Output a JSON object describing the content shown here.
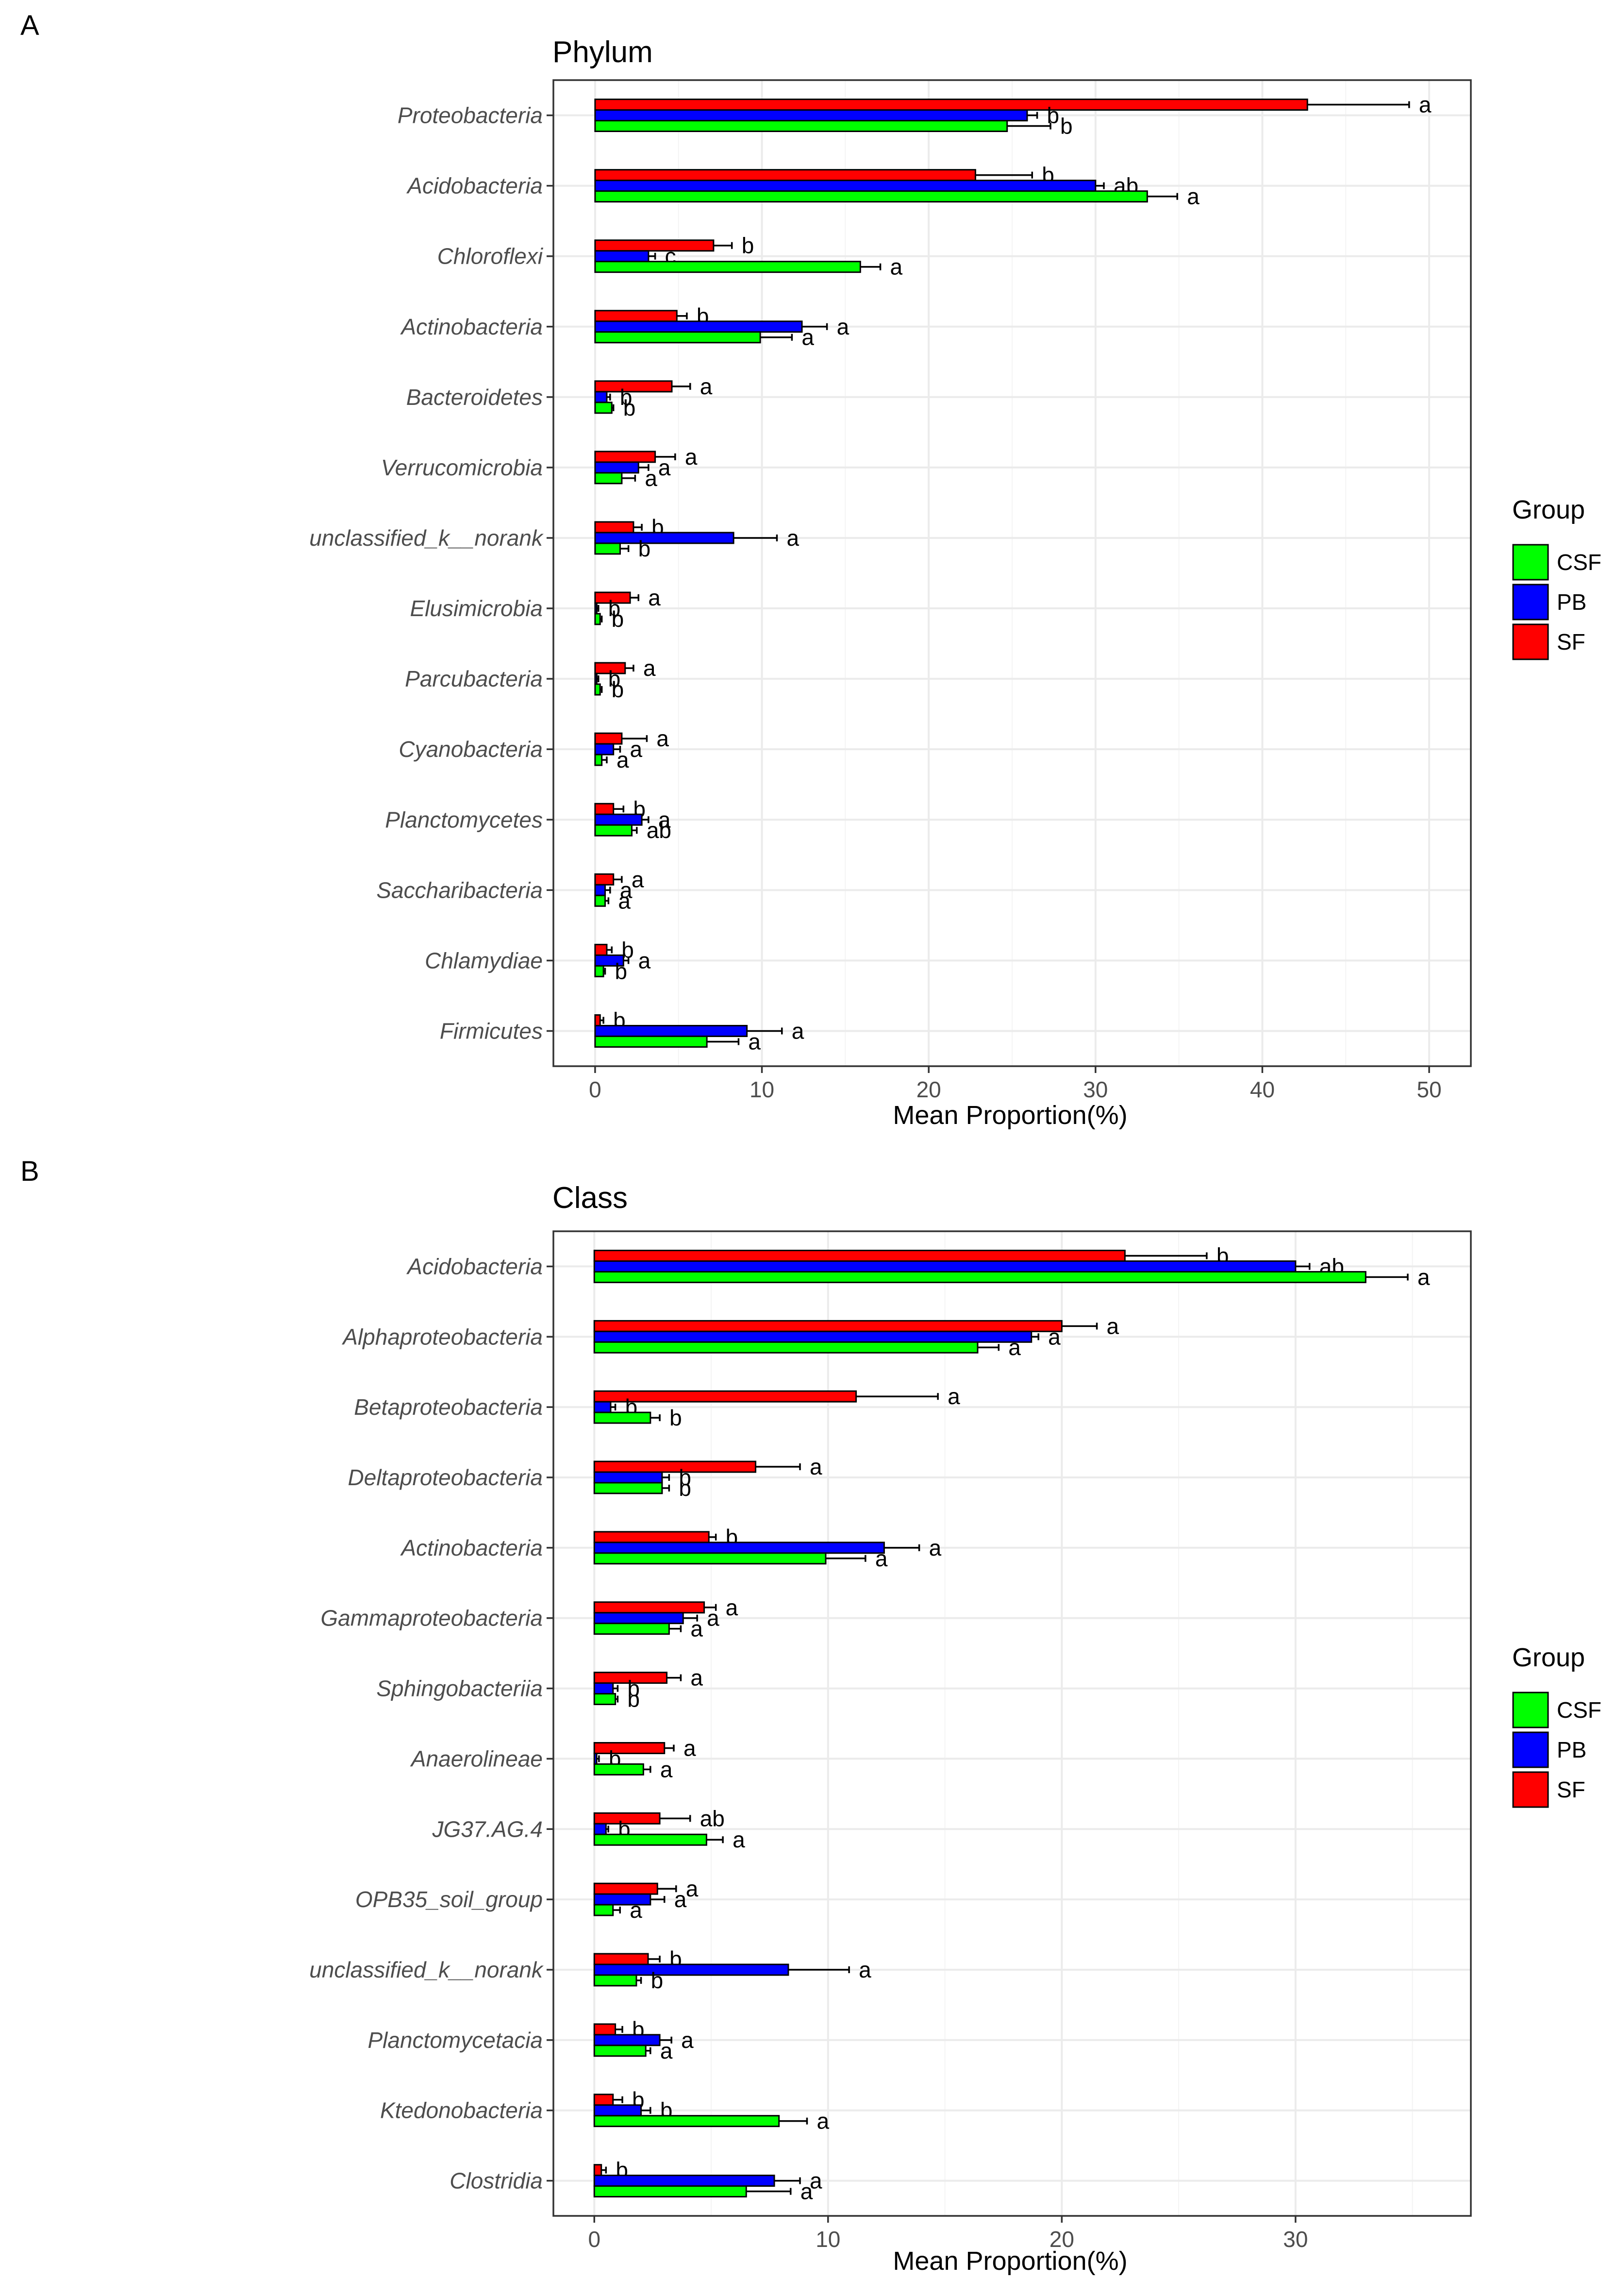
{
  "colors": {
    "CSF": "#00ff00",
    "PB": "#0000ff",
    "SF": "#ff0000",
    "grid_major": "#ebebeb",
    "grid_minor": "#f4f4f4"
  },
  "legend": {
    "title": "Group",
    "items": [
      "CSF",
      "PB",
      "SF"
    ]
  },
  "chart_data": [
    {
      "type": "bar",
      "panel": "A",
      "title": "Phylum",
      "xlabel": "Mean Proportion(%)",
      "xlim": [
        -2.5,
        52.5
      ],
      "ticks": [
        0,
        10,
        20,
        30,
        40,
        50
      ],
      "categories": [
        "Proteobacteria",
        "Acidobacteria",
        "Chloroflexi",
        "Actinobacteria",
        "Bacteroidetes",
        "Verrucomicrobia",
        "unclassified_k__norank",
        "Elusimicrobia",
        "Parcubacteria",
        "Cyanobacteria",
        "Planctomycetes",
        "Saccharibacteria",
        "Chlamydiae",
        "Firmicutes"
      ],
      "series": [
        {
          "name": "SF",
          "values": [
            42.7,
            22.8,
            7.1,
            4.9,
            4.6,
            3.6,
            2.3,
            2.1,
            1.8,
            1.6,
            1.1,
            1.1,
            0.7,
            0.3
          ],
          "errors": [
            6.1,
            3.4,
            1.1,
            0.6,
            1.1,
            1.2,
            0.5,
            0.5,
            0.5,
            1.5,
            0.6,
            0.5,
            0.3,
            0.2
          ],
          "labels": [
            "a",
            "b",
            "b",
            "b",
            "a",
            "a",
            "b",
            "a",
            "a",
            "a",
            "b",
            "a",
            "b",
            "b"
          ]
        },
        {
          "name": "PB",
          "values": [
            25.9,
            30.0,
            3.2,
            12.4,
            0.7,
            2.6,
            8.3,
            0.1,
            0.1,
            1.1,
            2.8,
            0.6,
            1.7,
            9.1
          ],
          "errors": [
            0.6,
            0.5,
            0.4,
            1.5,
            0.2,
            0.6,
            2.6,
            0.1,
            0.1,
            0.4,
            0.4,
            0.3,
            0.3,
            2.1
          ],
          "labels": [
            "b",
            "ab",
            "c",
            "a",
            "b",
            "a",
            "a",
            "b",
            "b",
            "a",
            "a",
            "a",
            "a",
            "a"
          ]
        },
        {
          "name": "CSF",
          "values": [
            24.7,
            33.1,
            15.9,
            9.9,
            1.0,
            1.6,
            1.5,
            0.3,
            0.3,
            0.4,
            2.2,
            0.6,
            0.5,
            6.7
          ],
          "errors": [
            2.6,
            1.8,
            1.2,
            1.9,
            0.1,
            0.8,
            0.5,
            0.1,
            0.1,
            0.3,
            0.3,
            0.2,
            0.1,
            1.9
          ],
          "labels": [
            "b",
            "a",
            "a",
            "a",
            "b",
            "a",
            "b",
            "b",
            "b",
            "a",
            "ab",
            "a",
            "b",
            "a"
          ]
        }
      ]
    },
    {
      "type": "bar",
      "panel": "B",
      "title": "Class",
      "xlabel": "Mean Proportion(%)",
      "xlim": [
        -1.75,
        37.5
      ],
      "ticks": [
        0,
        10,
        20,
        30
      ],
      "categories": [
        "Acidobacteria",
        "Alphaproteobacteria",
        "Betaproteobacteria",
        "Deltaproteobacteria",
        "Actinobacteria",
        "Gammaproteobacteria",
        "Sphingobacteriia",
        "Anaerolineae",
        "JG37.AG.4",
        "OPB35_soil_group",
        "unclassified_k__norank",
        "Planctomycetacia",
        "Ktedonobacteria",
        "Clostridia"
      ],
      "series": [
        {
          "name": "SF",
          "values": [
            22.7,
            20.0,
            11.2,
            6.9,
            4.9,
            4.7,
            3.1,
            3.0,
            2.8,
            2.7,
            2.3,
            0.9,
            0.8,
            0.3
          ],
          "errors": [
            3.5,
            1.5,
            3.5,
            1.9,
            0.3,
            0.5,
            0.6,
            0.4,
            1.3,
            0.8,
            0.5,
            0.3,
            0.4,
            0.2
          ],
          "labels": [
            "b",
            "a",
            "a",
            "a",
            "b",
            "a",
            "a",
            "a",
            "ab",
            "a",
            "b",
            "b",
            "b",
            "b"
          ]
        },
        {
          "name": "PB",
          "values": [
            30.0,
            18.7,
            0.7,
            2.9,
            12.4,
            3.8,
            0.8,
            0.1,
            0.5,
            2.4,
            8.3,
            2.8,
            2.0,
            7.7
          ],
          "errors": [
            0.6,
            0.3,
            0.2,
            0.3,
            1.5,
            0.6,
            0.2,
            0.1,
            0.1,
            0.6,
            2.6,
            0.5,
            0.4,
            1.1
          ],
          "labels": [
            "ab",
            "a",
            "b",
            "b",
            "a",
            "a",
            "b",
            "b",
            "b",
            "a",
            "a",
            "a",
            "b",
            "a"
          ]
        },
        {
          "name": "CSF",
          "values": [
            33.0,
            16.4,
            2.4,
            2.9,
            9.9,
            3.2,
            0.9,
            2.1,
            4.8,
            0.8,
            1.8,
            2.2,
            7.9,
            6.5
          ],
          "errors": [
            1.8,
            0.9,
            0.4,
            0.3,
            1.7,
            0.5,
            0.1,
            0.3,
            0.7,
            0.3,
            0.2,
            0.2,
            1.2,
            1.9
          ],
          "labels": [
            "a",
            "a",
            "b",
            "b",
            "a",
            "a",
            "b",
            "a",
            "a",
            "a",
            "b",
            "a",
            "a",
            "a"
          ]
        }
      ]
    }
  ]
}
